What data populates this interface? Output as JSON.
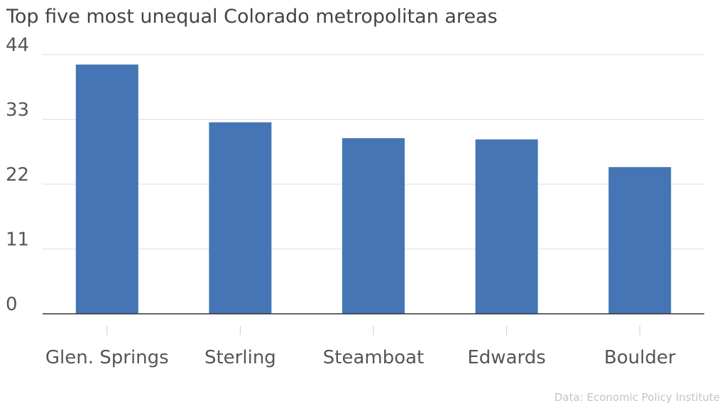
{
  "chart_data": {
    "type": "bar",
    "title": "Top five most unequal Colorado metropolitan areas",
    "categories": [
      "Glen. Springs",
      "Sterling",
      "Steamboat",
      "Edwards",
      "Boulder"
    ],
    "values": [
      42.3,
      32.5,
      29.8,
      29.6,
      24.9
    ],
    "ylim": [
      0,
      44
    ],
    "yticks": [
      0,
      11,
      22,
      33,
      44
    ],
    "xlabel": "",
    "ylabel": "",
    "grid": true,
    "bar_color": "#4575b4",
    "source": "Data: Economic Policy Institute"
  }
}
